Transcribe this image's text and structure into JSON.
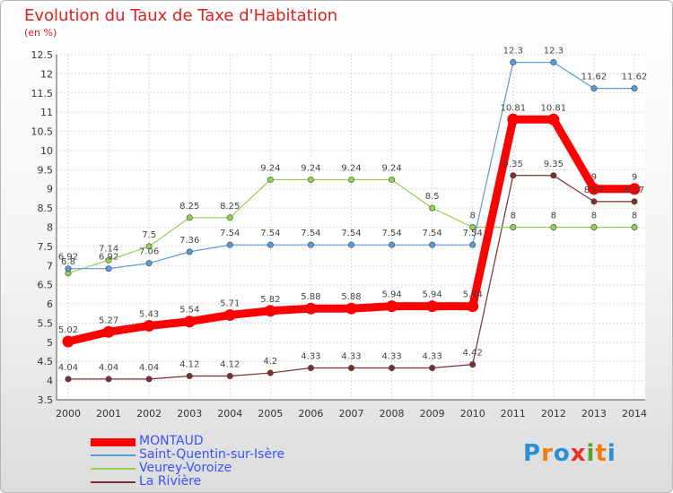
{
  "title": "Evolution du Taux de Taxe d'Habitation",
  "subtitle": "(en %)",
  "logo": {
    "text": "Proxiti",
    "colors": [
      "#2b8fd6",
      "#f07c10",
      "#2b8fd6",
      "#e5332a",
      "#5aa02c",
      "#f07c10",
      "#2b8fd6"
    ]
  },
  "chart_data": {
    "type": "line",
    "categories": [
      "2000",
      "2001",
      "2002",
      "2003",
      "2004",
      "2005",
      "2006",
      "2007",
      "2008",
      "2009",
      "2010",
      "2011",
      "2012",
      "2013",
      "2014"
    ],
    "ylim": [
      3.5,
      12.5
    ],
    "yticks": [
      3.5,
      4,
      4.5,
      5,
      5.5,
      6,
      6.5,
      7,
      7.5,
      8,
      8.5,
      9,
      9.5,
      10,
      10.5,
      11,
      11.5,
      12,
      12.5
    ],
    "ytick_labels": [
      "3.5",
      "4",
      "4.5",
      "5",
      "5.5",
      "6",
      "6.5",
      "7",
      "7.5",
      "8",
      "8.5",
      "9",
      "9.5",
      "10",
      "10.5",
      "11",
      "11.5",
      "12",
      "12.5"
    ],
    "grid": true,
    "legend_position": "bottom-left",
    "series": [
      {
        "name": "MONTAUD",
        "color": "#ff0000",
        "bold": true,
        "values": [
          5.02,
          5.27,
          5.43,
          5.54,
          5.71,
          5.82,
          5.88,
          5.88,
          5.94,
          5.94,
          5.94,
          10.81,
          10.81,
          9,
          9
        ],
        "labels": [
          "5.02",
          "5.27",
          "5.43",
          "5.54",
          "5.71",
          "5.82",
          "5.88",
          "5.88",
          "5.94",
          "5.94",
          "5.94",
          "10.81",
          "10.81",
          "9",
          "9"
        ]
      },
      {
        "name": "Saint-Quentin-sur-Isère",
        "color": "#5b9bd5",
        "values": [
          6.92,
          6.92,
          7.06,
          7.36,
          7.54,
          7.54,
          7.54,
          7.54,
          7.54,
          7.54,
          7.54,
          12.3,
          12.3,
          11.62,
          11.62
        ],
        "labels": [
          "6.92",
          "6.92",
          "7.06",
          "7.36",
          "7.54",
          "7.54",
          "7.54",
          "7.54",
          "7.54",
          "7.54",
          "7.54",
          "12.3",
          "12.3",
          "11.62",
          "11.62"
        ]
      },
      {
        "name": "Veurey-Voroize",
        "color": "#92d050",
        "values": [
          6.8,
          7.14,
          7.5,
          8.25,
          8.25,
          9.24,
          9.24,
          9.24,
          9.24,
          8.5,
          8,
          8,
          8,
          8,
          8
        ],
        "labels": [
          "6.8",
          "7.14",
          "7.5",
          "8.25",
          "8.25",
          "9.24",
          "9.24",
          "9.24",
          "9.24",
          "8.5",
          "8",
          "8",
          "8",
          "8",
          "8"
        ]
      },
      {
        "name": "La Rivière",
        "color": "#7b2f2f",
        "values": [
          4.04,
          4.04,
          4.04,
          4.12,
          4.12,
          4.2,
          4.33,
          4.33,
          4.33,
          4.33,
          4.42,
          9.35,
          9.35,
          8.67,
          8.67
        ],
        "labels": [
          "4.04",
          "4.04",
          "4.04",
          "4.12",
          "4.12",
          "4.2",
          "4.33",
          "4.33",
          "4.33",
          "4.33",
          "4.42",
          "9.35",
          "9.35",
          "8.67",
          "8.67"
        ]
      }
    ]
  }
}
